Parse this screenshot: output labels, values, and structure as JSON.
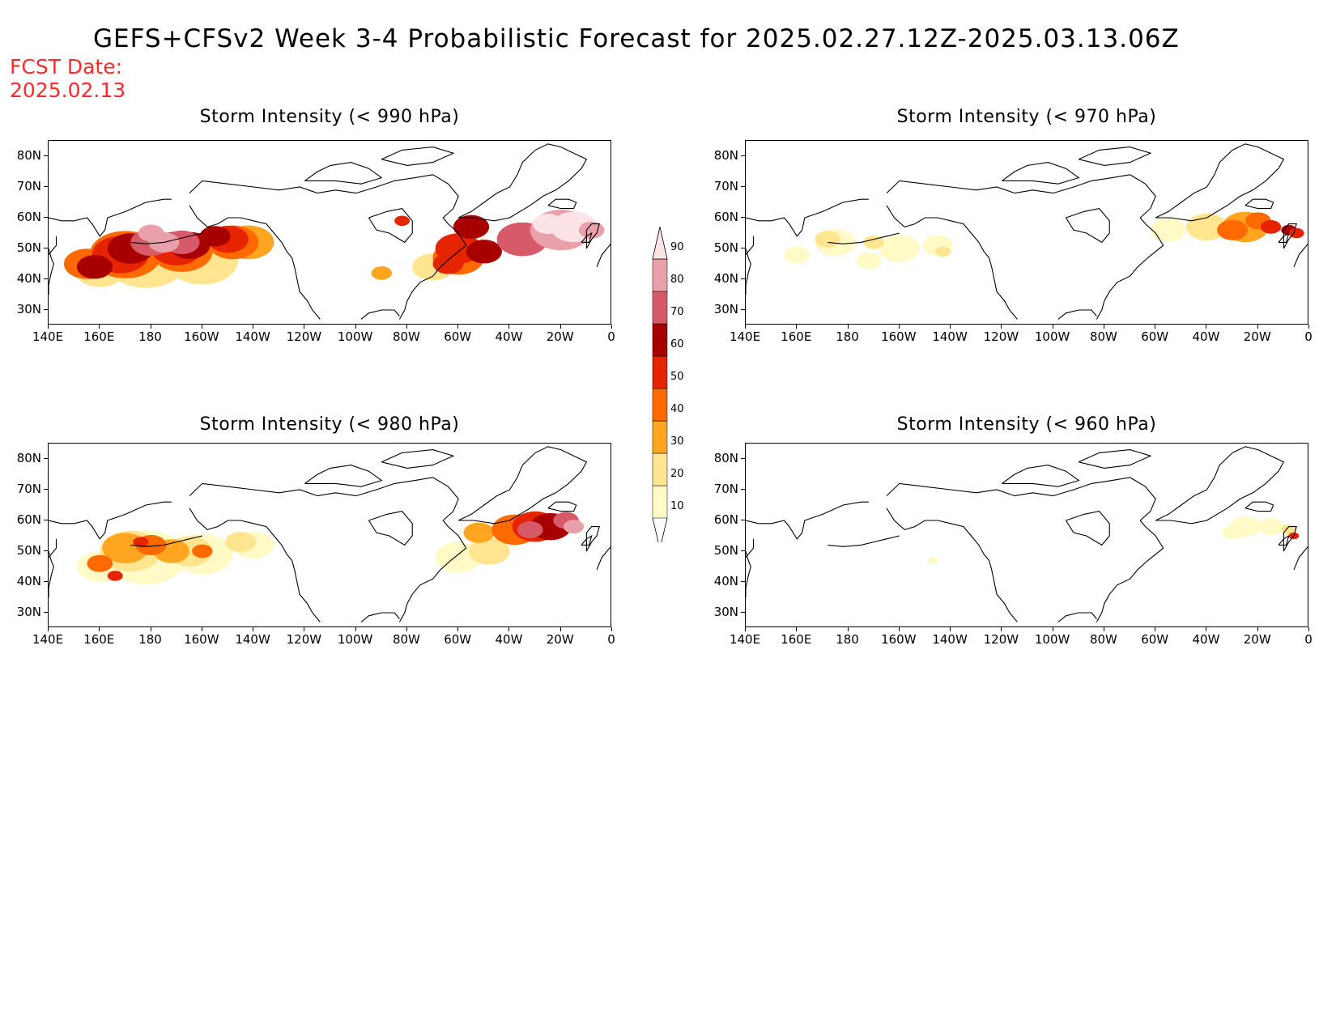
{
  "title": "GEFS+CFSv2 Week 3-4 Probabilistic Forecast for 2025.02.27.12Z-2025.03.13.06Z",
  "fcst_date": {
    "line1": "FCST Date:",
    "line2": "2025.02.13"
  },
  "lat_ticks": [
    "80N",
    "70N",
    "60N",
    "50N",
    "40N",
    "30N"
  ],
  "lon_ticks": [
    "140E",
    "160E",
    "180",
    "160W",
    "140W",
    "120W",
    "100W",
    "80W",
    "60W",
    "40W",
    "20W",
    "0"
  ],
  "colorbar": {
    "levels": [
      "10",
      "20",
      "30",
      "40",
      "50",
      "60",
      "70",
      "80",
      "90"
    ],
    "colors": [
      "#fffac6",
      "#ffe58f",
      "#ffa51f",
      "#ff6a00",
      "#e62400",
      "#a80000",
      "#d65a68",
      "#eaa0aa",
      "#fce3e6"
    ]
  },
  "panels": [
    {
      "title": "Storm Intensity (< 990 hPa)"
    },
    {
      "title": "Storm Intensity (< 970 hPa)"
    },
    {
      "title": "Storm Intensity (< 980 hPa)"
    },
    {
      "title": "Storm Intensity (< 960 hPa)"
    }
  ]
}
